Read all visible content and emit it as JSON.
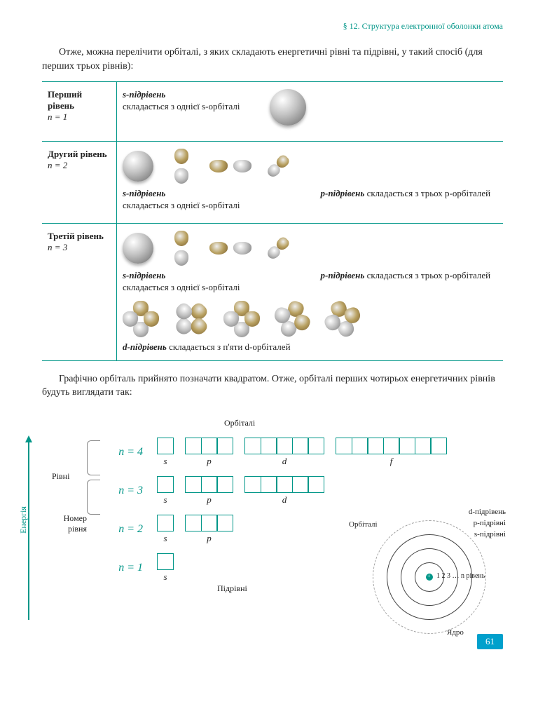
{
  "header": "§ 12. Структура електронної оболонки атома",
  "intro": "Отже, можна перелічити орбіталі, з яких складають енергетичні рівні та підрівні, у такий спосіб (для перших трьох рівнів):",
  "rows": [
    {
      "name": "Перший рівень",
      "n": "n = 1",
      "s_title": "s-підрівень",
      "s_text": "складається з однієї s-орбіталі"
    },
    {
      "name": "Другий рівень",
      "n": "n = 2",
      "s_title": "s-підрівень",
      "s_text": "складається з однієї s-орбіталі",
      "p_title": "p-підрівень",
      "p_text": "складається з трьох p-орбіталей"
    },
    {
      "name": "Третій рівень",
      "n": "n = 3",
      "s_title": "s-підрівень",
      "s_text": "складається з однієї s-орбіталі",
      "p_title": "p-підрівень",
      "p_text": "складається з трьох p-орбіталей",
      "d_title": "d-підрівень",
      "d_text": "складається з п'яти d-орбіталей"
    }
  ],
  "para2": "Графічно орбіталь прийнято позначати квадратом. Отже, орбіталі перших чотирьох енергетичних рівнів будуть виглядати так:",
  "diagram": {
    "energy": "Енергія",
    "rivni": "Рівні",
    "nomer": "Номер рівня",
    "orbitali": "Орбіталі",
    "pidrivni": "Підрівні",
    "levels": [
      {
        "n": "n = 4",
        "subs": [
          {
            "l": "s",
            "c": 1
          },
          {
            "l": "p",
            "c": 3
          },
          {
            "l": "d",
            "c": 5
          },
          {
            "l": "f",
            "c": 7
          }
        ]
      },
      {
        "n": "n = 3",
        "subs": [
          {
            "l": "s",
            "c": 1
          },
          {
            "l": "p",
            "c": 3
          },
          {
            "l": "d",
            "c": 5
          }
        ]
      },
      {
        "n": "n = 2",
        "subs": [
          {
            "l": "s",
            "c": 1
          },
          {
            "l": "p",
            "c": 3
          }
        ]
      },
      {
        "n": "n = 1",
        "subs": [
          {
            "l": "s",
            "c": 1
          }
        ]
      }
    ],
    "atom": {
      "d": "d-підрівень",
      "p": "p-підрівні",
      "s": "s-підрівні",
      "orb": "Орбіталі",
      "shells": "1  2  3 … n  рівень",
      "nucleus": "Ядро"
    }
  },
  "pageNumber": "61",
  "colors": {
    "teal": "#009688",
    "text": "#222222",
    "pagenum_bg": "#00a0cc"
  }
}
